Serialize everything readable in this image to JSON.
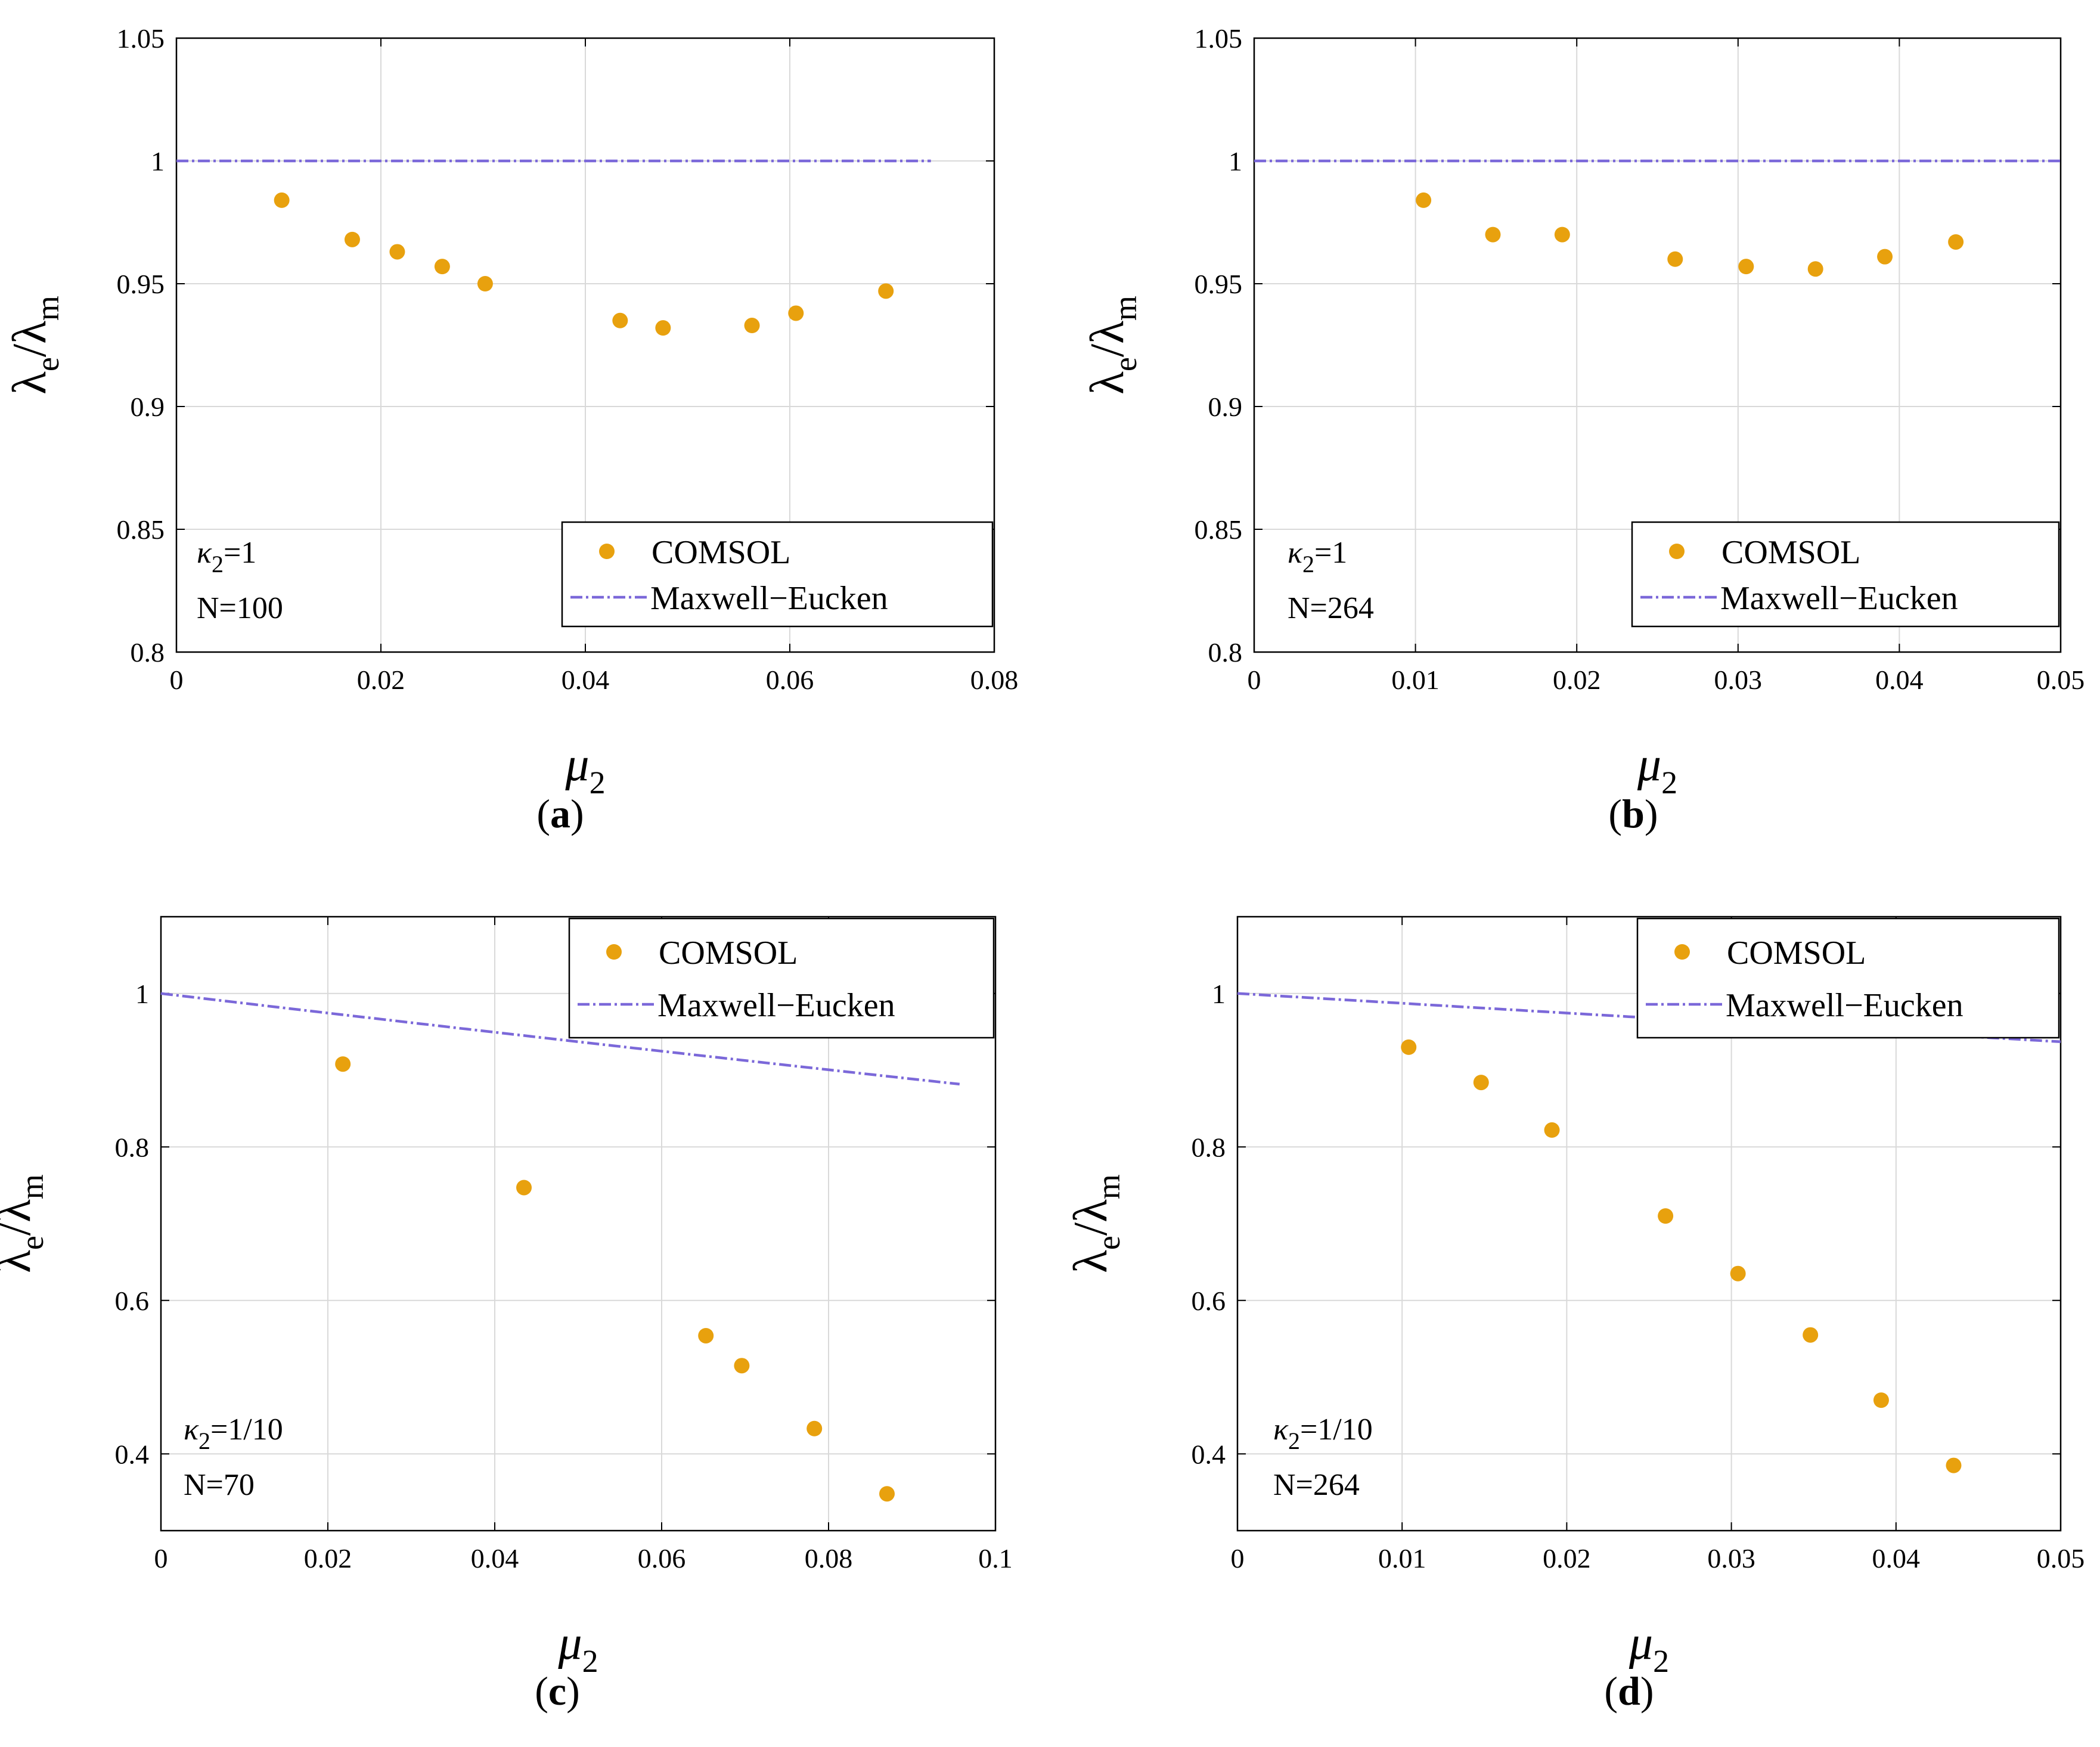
{
  "colors": {
    "scatter": "#E8A10E",
    "line": "#7B68D9",
    "grid": "#d9d9d9",
    "axis": "#000000"
  },
  "chart_data": [
    {
      "type": "scatter",
      "caption": "a",
      "title": "",
      "xlabel": "μ",
      "xlabel_sub": "2",
      "ylabel": "λ",
      "ylabel_e": "e",
      "ylabel_slash": "/λ",
      "ylabel_m": "m",
      "xlim": [
        0,
        0.08
      ],
      "ylim": [
        0.8,
        1.05
      ],
      "xticks": [
        0,
        0.02,
        0.04,
        0.06,
        0.08
      ],
      "xtick_labels": [
        "0",
        "0.02",
        "0.04",
        "0.06",
        "0.08"
      ],
      "yticks": [
        0.8,
        0.85,
        0.9,
        0.95,
        1,
        1.05
      ],
      "ytick_labels": [
        "0.8",
        "0.85",
        "0.9",
        "0.95",
        "1",
        "1.05"
      ],
      "legend_position": "bottom-right",
      "annotation": {
        "kappa": "κ",
        "kappa_sub": "2",
        "kappa_value": "=1",
        "n": "N=100"
      },
      "series": [
        {
          "name": "COMSOL",
          "kind": "scatter",
          "x": [
            0.0103,
            0.0172,
            0.0216,
            0.026,
            0.0302,
            0.0434,
            0.0476,
            0.0563,
            0.0606,
            0.0694
          ],
          "y": [
            0.984,
            0.968,
            0.963,
            0.957,
            0.95,
            0.935,
            0.932,
            0.933,
            0.938,
            0.947
          ]
        },
        {
          "name": "Maxwell−Eucken",
          "kind": "line",
          "x_range": [
            0,
            0.0738
          ],
          "kappa": 1
        }
      ]
    },
    {
      "type": "scatter",
      "caption": "b",
      "title": "",
      "xlabel": "μ",
      "xlabel_sub": "2",
      "ylabel": "λ",
      "ylabel_e": "e",
      "ylabel_slash": "/λ",
      "ylabel_m": "m",
      "xlim": [
        0,
        0.05
      ],
      "ylim": [
        0.8,
        1.05
      ],
      "xticks": [
        0,
        0.01,
        0.02,
        0.03,
        0.04,
        0.05
      ],
      "xtick_labels": [
        "0",
        "0.01",
        "0.02",
        "0.03",
        "0.04",
        "0.05"
      ],
      "yticks": [
        0.8,
        0.85,
        0.9,
        0.95,
        1,
        1.05
      ],
      "ytick_labels": [
        "0.8",
        "0.85",
        "0.9",
        "0.95",
        "1",
        "1.05"
      ],
      "legend_position": "bottom-right",
      "annotation": {
        "kappa": "κ",
        "kappa_sub": "2",
        "kappa_value": "=1",
        "n": "N=264"
      },
      "series": [
        {
          "name": "COMSOL",
          "kind": "scatter",
          "x": [
            0.0105,
            0.0148,
            0.0191,
            0.0261,
            0.0305,
            0.0348,
            0.0391,
            0.0435
          ],
          "y": [
            0.984,
            0.97,
            0.97,
            0.96,
            0.957,
            0.956,
            0.961,
            0.967
          ]
        },
        {
          "name": "Maxwell−Eucken",
          "kind": "line",
          "x_range": [
            0,
            0.05
          ],
          "kappa": 1
        }
      ]
    },
    {
      "type": "scatter",
      "caption": "c",
      "title": "",
      "xlabel": "μ",
      "xlabel_sub": "2",
      "ylabel": "λ",
      "ylabel_e": "e",
      "ylabel_slash": "/λ",
      "ylabel_m": "m",
      "xlim": [
        0,
        0.1
      ],
      "ylim": [
        0.3,
        1.1
      ],
      "xticks": [
        0,
        0.02,
        0.04,
        0.06,
        0.08,
        0.1
      ],
      "xtick_labels": [
        "0",
        "0.02",
        "0.04",
        "0.06",
        "0.08",
        "0.1"
      ],
      "yticks": [
        0.4,
        0.6,
        0.8,
        1
      ],
      "ytick_labels": [
        "0.4",
        "0.6",
        "0.8",
        "1"
      ],
      "legend_position": "top-right",
      "annotation": {
        "kappa": "κ",
        "kappa_sub": "2",
        "kappa_value": "=1/10",
        "n": "N=70"
      },
      "series": [
        {
          "name": "COMSOL",
          "kind": "scatter",
          "x": [
            0.0218,
            0.0435,
            0.0653,
            0.0696,
            0.0783,
            0.087
          ],
          "y": [
            0.908,
            0.747,
            0.554,
            0.515,
            0.433,
            0.348
          ]
        },
        {
          "name": "Maxwell−Eucken",
          "kind": "line",
          "x_range": [
            0,
            0.0957
          ],
          "kappa": 0.1
        }
      ]
    },
    {
      "type": "scatter",
      "caption": "d",
      "title": "",
      "xlabel": "μ",
      "xlabel_sub": "2",
      "ylabel": "λ",
      "ylabel_e": "e",
      "ylabel_slash": "/λ",
      "ylabel_m": "m",
      "xlim": [
        0,
        0.05
      ],
      "ylim": [
        0.3,
        1.1
      ],
      "xticks": [
        0,
        0.01,
        0.02,
        0.03,
        0.04,
        0.05
      ],
      "xtick_labels": [
        "0",
        "0.01",
        "0.02",
        "0.03",
        "0.04",
        "0.05"
      ],
      "yticks": [
        0.4,
        0.6,
        0.8,
        1
      ],
      "ytick_labels": [
        "0.4",
        "0.6",
        "0.8",
        "1"
      ],
      "legend_position": "top-right",
      "annotation": {
        "kappa": "κ",
        "kappa_sub": "2",
        "kappa_value": "=1/10",
        "n": "N=264"
      },
      "series": [
        {
          "name": "COMSOL",
          "kind": "scatter",
          "x": [
            0.0104,
            0.0148,
            0.0191,
            0.026,
            0.0304,
            0.0348,
            0.0391,
            0.0435
          ],
          "y": [
            0.93,
            0.884,
            0.822,
            0.71,
            0.635,
            0.555,
            0.47,
            0.385
          ]
        },
        {
          "name": "Maxwell−Eucken",
          "kind": "line",
          "x_range": [
            0,
            0.05
          ],
          "kappa": 0.1
        }
      ]
    }
  ]
}
